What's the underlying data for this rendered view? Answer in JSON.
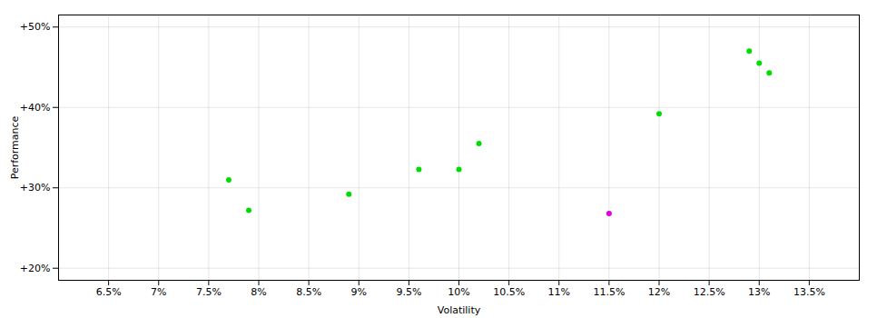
{
  "chart_data": {
    "type": "scatter",
    "xlabel": "Volatility",
    "ylabel": "Performance",
    "xlim": [
      0.06,
      0.14
    ],
    "ylim": [
      0.185,
      0.515
    ],
    "xticks": [
      {
        "value": 0.065,
        "label": "6.5%"
      },
      {
        "value": 0.07,
        "label": "7%"
      },
      {
        "value": 0.075,
        "label": "7.5%"
      },
      {
        "value": 0.08,
        "label": "8%"
      },
      {
        "value": 0.085,
        "label": "8.5%"
      },
      {
        "value": 0.09,
        "label": "9%"
      },
      {
        "value": 0.095,
        "label": "9.5%"
      },
      {
        "value": 0.1,
        "label": "10%"
      },
      {
        "value": 0.105,
        "label": "10.5%"
      },
      {
        "value": 0.11,
        "label": "11%"
      },
      {
        "value": 0.115,
        "label": "11.5%"
      },
      {
        "value": 0.12,
        "label": "12%"
      },
      {
        "value": 0.125,
        "label": "12.5%"
      },
      {
        "value": 0.13,
        "label": "13%"
      },
      {
        "value": 0.135,
        "label": "13.5%"
      }
    ],
    "yticks": [
      {
        "value": 0.2,
        "label": "+20%"
      },
      {
        "value": 0.3,
        "label": "+30%"
      },
      {
        "value": 0.4,
        "label": "+40%"
      },
      {
        "value": 0.5,
        "label": "+50%"
      }
    ],
    "grid": true,
    "series": [
      {
        "color": "#00dd00",
        "x": [
          0.077,
          0.079,
          0.089,
          0.096,
          0.102,
          0.1,
          0.12,
          0.129,
          0.13,
          0.131
        ],
        "values": [
          0.31,
          0.272,
          0.292,
          0.323,
          0.355,
          0.323,
          0.392,
          0.47,
          0.455,
          0.443
        ]
      },
      {
        "color": "#dd00dd",
        "x": [
          0.115
        ],
        "values": [
          0.268
        ]
      }
    ]
  }
}
